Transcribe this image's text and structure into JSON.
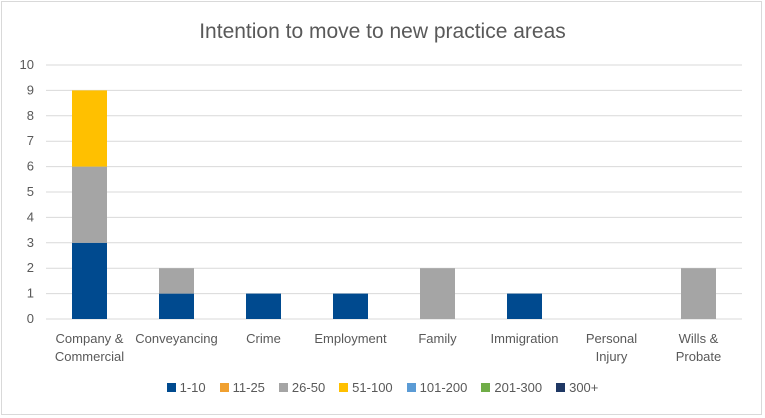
{
  "chart_data": {
    "type": "bar",
    "stacked": true,
    "title": "Intention to move to new practice areas",
    "categories": [
      [
        "Company &",
        "Commercial"
      ],
      [
        "Conveyancing"
      ],
      [
        "Crime"
      ],
      [
        "Employment"
      ],
      [
        "Family"
      ],
      [
        "Immigration"
      ],
      [
        "Personal",
        "Injury"
      ],
      [
        "Wills &",
        "Probate"
      ]
    ],
    "series": [
      {
        "name": "1-10",
        "color": "#004a8f",
        "values": [
          3,
          1,
          1,
          1,
          0,
          1,
          0,
          0
        ]
      },
      {
        "name": "11-25",
        "color": "#f0a030",
        "values": [
          0,
          0,
          0,
          0,
          0,
          0,
          0,
          0
        ]
      },
      {
        "name": "26-50",
        "color": "#a5a5a5",
        "values": [
          3,
          1,
          0,
          0,
          2,
          0,
          0,
          2
        ]
      },
      {
        "name": "51-100",
        "color": "#ffc000",
        "values": [
          3,
          0,
          0,
          0,
          0,
          0,
          0,
          0
        ]
      },
      {
        "name": "101-200",
        "color": "#5b9bd5",
        "values": [
          0,
          0,
          0,
          0,
          0,
          0,
          0,
          0
        ]
      },
      {
        "name": "201-300",
        "color": "#70ad47",
        "values": [
          0,
          0,
          0,
          0,
          0,
          0,
          0,
          0
        ]
      },
      {
        "name": "300+",
        "color": "#1f3864",
        "values": [
          0,
          0,
          0,
          0,
          0,
          0,
          0,
          0
        ]
      }
    ],
    "ylim": [
      0,
      10
    ],
    "yticks": [
      0,
      1,
      2,
      3,
      4,
      5,
      6,
      7,
      8,
      9,
      10
    ],
    "grid": true,
    "legend_position": "bottom"
  }
}
